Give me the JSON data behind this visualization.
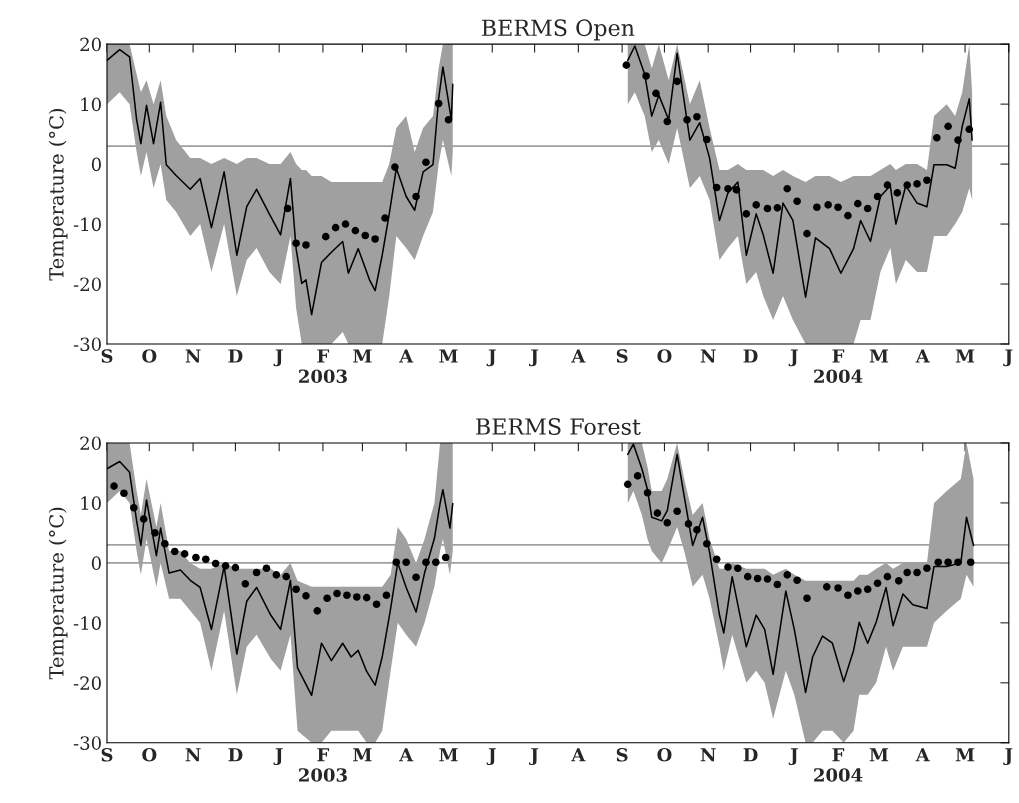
{
  "chart_data": [
    {
      "type": "line",
      "title": "BERMS Open",
      "ylabel": "Temperature (°C)",
      "xlim": [
        "2002-09-01",
        "2004-06-01"
      ],
      "xticks": [
        {
          "value": "2002-09-01",
          "label": "S"
        },
        {
          "value": "2002-10-01",
          "label": "O"
        },
        {
          "value": "2002-11-01",
          "label": "N"
        },
        {
          "value": "2002-12-01",
          "label": "D"
        },
        {
          "value": "2003-01-01",
          "label": "J"
        },
        {
          "value": "2003-02-01",
          "label": "F\n2003"
        },
        {
          "value": "2003-03-01",
          "label": "M"
        },
        {
          "value": "2003-04-01",
          "label": "A"
        },
        {
          "value": "2003-05-01",
          "label": "M"
        },
        {
          "value": "2003-06-01",
          "label": "J"
        },
        {
          "value": "2003-07-01",
          "label": "J"
        },
        {
          "value": "2003-08-01",
          "label": "A"
        },
        {
          "value": "2003-09-01",
          "label": "S"
        },
        {
          "value": "2003-10-01",
          "label": "O"
        },
        {
          "value": "2003-11-01",
          "label": "N"
        },
        {
          "value": "2003-12-01",
          "label": "D"
        },
        {
          "value": "2004-01-01",
          "label": "J"
        },
        {
          "value": "2004-02-01",
          "label": "F\n2004"
        },
        {
          "value": "2004-03-01",
          "label": "M"
        },
        {
          "value": "2004-04-01",
          "label": "A"
        },
        {
          "value": "2004-05-01",
          "label": "M"
        },
        {
          "value": "2004-06-01",
          "label": "J"
        }
      ],
      "ylim": [
        -30,
        20
      ],
      "yticks": [
        -30,
        -20,
        -10,
        0,
        10,
        20
      ],
      "grid": false,
      "ref_lines": [
        {
          "axis": "y",
          "value": 3,
          "color": "#a0a0a0"
        }
      ],
      "series": [
        {
          "color": "#000000",
          "x": [
            "2002-09-01",
            "2002-09-10",
            "2002-09-17",
            "2002-09-22",
            "2002-09-25",
            "2002-09-29",
            "2002-10-04",
            "2002-10-09",
            "2002-10-13",
            "2002-10-20",
            "2002-10-30",
            "2002-11-06",
            "2002-11-14",
            "2002-11-23",
            "2002-12-02",
            "2002-12-09",
            "2002-12-16",
            "2002-12-25",
            "2003-01-02",
            "2003-01-09",
            "2003-01-13",
            "2003-01-17",
            "2003-01-20",
            "2003-01-24",
            "2003-01-31",
            "2003-02-07",
            "2003-02-15",
            "2003-02-19",
            "2003-02-26",
            "2003-03-06",
            "2003-03-10",
            "2003-03-15",
            "2003-03-20",
            "2003-03-25",
            "2003-04-01",
            "2003-04-07",
            "2003-04-13",
            "2003-04-20",
            "2003-04-24",
            "2003-04-27",
            "2003-05-03",
            "2003-05-04"
          ],
          "values": [
            17.3,
            19.1,
            17.9,
            7.4,
            3.4,
            9.8,
            3.4,
            10.3,
            -0.1,
            -1.9,
            -4.2,
            -2.4,
            -10.6,
            -1.3,
            -15.2,
            -7.1,
            -4.2,
            -8.3,
            -11.8,
            -2.4,
            -14.1,
            -19.9,
            -19.3,
            -25.1,
            -16.4,
            -14.7,
            -12.9,
            -18.2,
            -14.1,
            -19.3,
            -21.1,
            -15.2,
            -8.3,
            -0.7,
            -5.4,
            -7.7,
            -1.3,
            -0.1,
            10.9,
            16.2,
            7.4,
            13.3
          ],
          "upper": [
            20,
            20,
            20,
            15,
            12,
            14,
            10,
            14,
            8,
            4,
            1,
            1,
            0,
            1,
            0,
            1,
            1,
            0,
            0,
            2,
            0,
            -1,
            -1,
            -2,
            -2,
            -3,
            -3,
            -3,
            -3,
            -3,
            -3,
            -3,
            0,
            6,
            8,
            2,
            6,
            8,
            16,
            20,
            20,
            20
          ],
          "lower": [
            10,
            12,
            10,
            2,
            -2,
            2,
            -4,
            0,
            -6,
            -8,
            -12,
            -10,
            -18,
            -10,
            -22,
            -16,
            -14,
            -18,
            -20,
            -12,
            -24,
            -30,
            -30,
            -30,
            -30,
            -30,
            -28,
            -30,
            -30,
            -30,
            -30,
            -30,
            -22,
            -12,
            -14,
            -16,
            -12,
            -8,
            0,
            4,
            -2,
            2
          ]
        },
        {
          "type": "scatter",
          "color": "#000000",
          "marker": "circle",
          "x": [
            "2003-01-07",
            "2003-01-13",
            "2003-01-20",
            "2003-02-03",
            "2003-02-10",
            "2003-02-17",
            "2003-02-24",
            "2003-03-03",
            "2003-03-10",
            "2003-03-17",
            "2003-03-24",
            "2003-04-08",
            "2003-04-15",
            "2003-04-24",
            "2003-05-01"
          ],
          "values": [
            -7.4,
            -13.2,
            -13.5,
            -12.1,
            -10.6,
            -10.0,
            -11.1,
            -11.9,
            -12.5,
            -9.0,
            -0.5,
            -5.4,
            0.3,
            10.1,
            7.4
          ]
        },
        {
          "color": "#000000",
          "x": [
            "2003-09-05",
            "2003-09-10",
            "2003-09-17",
            "2003-09-22",
            "2003-09-27",
            "2003-10-04",
            "2003-10-10",
            "2003-10-19",
            "2003-10-26",
            "2003-11-02",
            "2003-11-09",
            "2003-11-15",
            "2003-11-22",
            "2003-11-28",
            "2003-12-05",
            "2003-12-10",
            "2003-12-17",
            "2003-12-24",
            "2003-12-31",
            "2004-01-09",
            "2004-01-16",
            "2004-01-26",
            "2004-02-03",
            "2004-02-12",
            "2004-02-17",
            "2004-02-24",
            "2004-03-02",
            "2004-03-09",
            "2004-03-13",
            "2004-03-20",
            "2004-03-28",
            "2004-04-04",
            "2004-04-09",
            "2004-04-18",
            "2004-04-24",
            "2004-04-29",
            "2004-05-04",
            "2004-05-06"
          ],
          "values": [
            17.3,
            19.7,
            15,
            8,
            11.5,
            7.4,
            18.5,
            4,
            6.9,
            1.0,
            -9.4,
            -4.8,
            -3.0,
            -15.2,
            -8.3,
            -11.8,
            -18.2,
            -6.5,
            -9.4,
            -22.2,
            -12.3,
            -14.1,
            -18.2,
            -14.1,
            -9.4,
            -12.9,
            -5.4,
            -3.6,
            -10.0,
            -3.6,
            -6.5,
            -7.1,
            -0.1,
            -0.1,
            -0.7,
            6.3,
            10.9,
            4.0
          ],
          "upper": [
            20,
            20,
            20,
            16,
            20,
            14,
            20,
            10,
            14,
            6,
            -1,
            -1,
            0,
            -1,
            -1,
            -1,
            -2,
            -1,
            -2,
            -3,
            -2,
            -2,
            -3,
            -2,
            -2,
            -2,
            -1,
            0,
            -1,
            0,
            0,
            -1,
            8,
            10,
            8,
            12,
            20,
            12
          ],
          "lower": [
            10,
            12,
            8,
            2,
            4,
            0,
            6,
            -4,
            -2,
            -6,
            -16,
            -14,
            -12,
            -20,
            -18,
            -22,
            -26,
            -22,
            -26,
            -30,
            -30,
            -30,
            -30,
            -30,
            -26,
            -26,
            -18,
            -14,
            -20,
            -16,
            -18,
            -18,
            -12,
            -12,
            -10,
            -8,
            -4,
            -6
          ]
        },
        {
          "type": "scatter",
          "color": "#000000",
          "marker": "circle",
          "x": [
            "2003-09-04",
            "2003-09-18",
            "2003-09-25",
            "2003-10-03",
            "2003-10-10",
            "2003-10-17",
            "2003-10-24",
            "2003-10-31",
            "2003-11-07",
            "2003-11-15",
            "2003-11-21",
            "2003-11-28",
            "2003-12-05",
            "2003-12-13",
            "2003-12-20",
            "2003-12-27",
            "2004-01-03",
            "2004-01-10",
            "2004-01-17",
            "2004-01-25",
            "2004-02-01",
            "2004-02-08",
            "2004-02-15",
            "2004-02-22",
            "2004-02-29",
            "2004-03-07",
            "2004-03-14",
            "2004-03-21",
            "2004-03-28",
            "2004-04-04",
            "2004-04-11",
            "2004-04-19",
            "2004-04-26",
            "2004-05-04"
          ],
          "values": [
            16.5,
            14.7,
            11.8,
            7.1,
            13.8,
            7.4,
            7.9,
            4.1,
            -3.9,
            -4.1,
            -4.3,
            -8.3,
            -6.8,
            -7.4,
            -7.3,
            -4.1,
            -6.2,
            -11.6,
            -7.2,
            -6.8,
            -7.2,
            -8.6,
            -6.6,
            -7.4,
            -5.4,
            -3.5,
            -4.8,
            -3.5,
            -3.3,
            -2.7,
            4.4,
            6.3,
            4.0,
            5.8
          ]
        }
      ]
    },
    {
      "type": "line",
      "title": "BERMS Forest",
      "ylabel": "Temperature (°C)",
      "xlim": [
        "2002-09-01",
        "2004-06-01"
      ],
      "xticks": [
        {
          "value": "2002-09-01",
          "label": "S"
        },
        {
          "value": "2002-10-01",
          "label": "O"
        },
        {
          "value": "2002-11-01",
          "label": "N"
        },
        {
          "value": "2002-12-01",
          "label": "D"
        },
        {
          "value": "2003-01-01",
          "label": "J"
        },
        {
          "value": "2003-02-01",
          "label": "F\n2003"
        },
        {
          "value": "2003-03-01",
          "label": "M"
        },
        {
          "value": "2003-04-01",
          "label": "A"
        },
        {
          "value": "2003-05-01",
          "label": "M"
        },
        {
          "value": "2003-06-01",
          "label": "J"
        },
        {
          "value": "2003-07-01",
          "label": "J"
        },
        {
          "value": "2003-08-01",
          "label": "A"
        },
        {
          "value": "2003-09-01",
          "label": "S"
        },
        {
          "value": "2003-10-01",
          "label": "O"
        },
        {
          "value": "2003-11-01",
          "label": "N"
        },
        {
          "value": "2003-12-01",
          "label": "D"
        },
        {
          "value": "2004-01-01",
          "label": "J"
        },
        {
          "value": "2004-02-01",
          "label": "F\n2004"
        },
        {
          "value": "2004-03-01",
          "label": "M"
        },
        {
          "value": "2004-04-01",
          "label": "A"
        },
        {
          "value": "2004-05-01",
          "label": "M"
        },
        {
          "value": "2004-06-01",
          "label": "J"
        }
      ],
      "ylim": [
        -30,
        20
      ],
      "yticks": [
        -30,
        -20,
        -10,
        0,
        10,
        20
      ],
      "grid": false,
      "ref_lines": [
        {
          "axis": "y",
          "value": 3,
          "color": "#a0a0a0"
        },
        {
          "axis": "y",
          "value": 0,
          "color": "#a0a0a0"
        }
      ],
      "series": [
        {
          "color": "#000000",
          "x": [
            "2002-09-01",
            "2002-09-10",
            "2002-09-17",
            "2002-09-22",
            "2002-09-25",
            "2002-09-29",
            "2002-10-06",
            "2002-10-09",
            "2002-10-15",
            "2002-10-23",
            "2002-10-30",
            "2002-11-06",
            "2002-11-14",
            "2002-11-23",
            "2002-12-02",
            "2002-12-09",
            "2002-12-16",
            "2002-12-26",
            "2003-01-02",
            "2003-01-09",
            "2003-01-14",
            "2003-01-24",
            "2003-01-31",
            "2003-02-07",
            "2003-02-15",
            "2003-02-21",
            "2003-02-26",
            "2003-03-04",
            "2003-03-10",
            "2003-03-15",
            "2003-03-21",
            "2003-03-26",
            "2003-04-01",
            "2003-04-08",
            "2003-04-14",
            "2003-04-21",
            "2003-04-25",
            "2003-04-27",
            "2003-05-02",
            "2003-05-04"
          ],
          "values": [
            15.7,
            16.9,
            15.1,
            7.0,
            2.9,
            10.5,
            1.2,
            5.8,
            -1.7,
            -1.2,
            -2.9,
            -4.1,
            -11.1,
            -0.6,
            -15.2,
            -6.4,
            -4.1,
            -8.7,
            -11.1,
            -2.9,
            -17.5,
            -22.1,
            -13.4,
            -16.3,
            -13.4,
            -15.7,
            -14.6,
            -18.1,
            -20.4,
            -15.7,
            -7.6,
            0,
            -4.1,
            -8.2,
            -1.7,
            4.1,
            9.9,
            12.2,
            5.8,
            9.9
          ],
          "upper": [
            20,
            20,
            20,
            12,
            8,
            14,
            6,
            10,
            2,
            2,
            0,
            -1,
            -1,
            0,
            -1,
            -1,
            -1,
            -1,
            -2,
            0,
            -3,
            -4,
            -4,
            -4,
            -4,
            -4,
            -4,
            -4,
            -4,
            -4,
            -2,
            6,
            4,
            0,
            4,
            10,
            20,
            20,
            20,
            20
          ],
          "lower": [
            10,
            12,
            10,
            2,
            -2,
            4,
            -4,
            0,
            -6,
            -6,
            -8,
            -10,
            -18,
            -8,
            -22,
            -14,
            -12,
            -16,
            -18,
            -12,
            -28,
            -30,
            -30,
            -28,
            -28,
            -28,
            -28,
            -30,
            -30,
            -28,
            -18,
            -10,
            -12,
            -14,
            -10,
            -4,
            2,
            4,
            -2,
            2
          ]
        },
        {
          "type": "scatter",
          "color": "#000000",
          "marker": "circle",
          "x": [
            "2002-09-06",
            "2002-09-13",
            "2002-09-20",
            "2002-09-27",
            "2002-10-05",
            "2002-10-12",
            "2002-10-19",
            "2002-10-26",
            "2002-11-03",
            "2002-11-10",
            "2002-11-17",
            "2002-11-24",
            "2002-12-01",
            "2002-12-08",
            "2002-12-16",
            "2002-12-23",
            "2002-12-30",
            "2003-01-06",
            "2003-01-13",
            "2003-01-20",
            "2003-01-28",
            "2003-02-04",
            "2003-02-11",
            "2003-02-18",
            "2003-02-25",
            "2003-03-04",
            "2003-03-11",
            "2003-03-18",
            "2003-03-25",
            "2003-04-01",
            "2003-04-08",
            "2003-04-15",
            "2003-04-22",
            "2003-04-29"
          ],
          "values": [
            12.8,
            11.6,
            9.2,
            7.3,
            5.0,
            3.2,
            1.9,
            1.5,
            0.9,
            0.6,
            -0.1,
            -0.5,
            -0.8,
            -3.5,
            -1.6,
            -0.9,
            -2.0,
            -2.3,
            -4.4,
            -5.5,
            -8.0,
            -5.9,
            -5.1,
            -5.4,
            -5.7,
            -5.8,
            -6.9,
            -5.4,
            0.1,
            0.1,
            -2.4,
            0.1,
            0.1,
            0.9
          ]
        },
        {
          "color": "#000000",
          "x": [
            "2003-09-05",
            "2003-09-09",
            "2003-09-15",
            "2003-09-19",
            "2003-09-22",
            "2003-09-29",
            "2003-10-03",
            "2003-10-10",
            "2003-10-15",
            "2003-10-21",
            "2003-10-28",
            "2003-11-02",
            "2003-11-09",
            "2003-11-12",
            "2003-11-18",
            "2003-11-28",
            "2003-12-05",
            "2003-12-11",
            "2003-12-17",
            "2003-12-26",
            "2004-01-01",
            "2004-01-09",
            "2004-01-14",
            "2004-01-21",
            "2004-01-28",
            "2004-02-05",
            "2004-02-12",
            "2004-02-16",
            "2004-02-22",
            "2004-02-28",
            "2004-03-06",
            "2004-03-11",
            "2004-03-18",
            "2004-03-25",
            "2004-04-04",
            "2004-04-09",
            "2004-04-18",
            "2004-04-28",
            "2004-05-02",
            "2004-05-07"
          ],
          "values": [
            18.1,
            19.8,
            15.7,
            12.2,
            7.6,
            7.0,
            8.7,
            18.1,
            11.1,
            2.9,
            7.6,
            1.7,
            -8.7,
            -11.7,
            -2.3,
            -14.0,
            -8.7,
            -11.1,
            -18.6,
            -4.7,
            -11.1,
            -21.6,
            -15.7,
            -12.2,
            -13.4,
            -19.8,
            -14.6,
            -9.9,
            -13.4,
            -9.9,
            -4.1,
            -10.5,
            -5.2,
            -7.0,
            -7.6,
            -0.6,
            -0.6,
            0,
            7.6,
            2.9
          ],
          "upper": [
            20,
            20,
            20,
            16,
            12,
            12,
            14,
            20,
            14,
            8,
            10,
            4,
            -1,
            -1,
            0,
            -1,
            -1,
            -1,
            -2,
            -1,
            -2,
            -3,
            -3,
            -3,
            -3,
            -3,
            -3,
            -2,
            -2,
            -1,
            0,
            -1,
            0,
            0,
            0,
            10,
            12,
            14,
            20,
            14
          ],
          "lower": [
            10,
            12,
            8,
            4,
            2,
            0,
            2,
            6,
            2,
            -4,
            -2,
            -6,
            -14,
            -18,
            -12,
            -20,
            -18,
            -20,
            -26,
            -18,
            -22,
            -30,
            -30,
            -28,
            -28,
            -30,
            -28,
            -22,
            -22,
            -20,
            -14,
            -18,
            -14,
            -14,
            -14,
            -10,
            -8,
            -6,
            -2,
            -4
          ]
        },
        {
          "type": "scatter",
          "color": "#000000",
          "marker": "circle",
          "x": [
            "2003-09-05",
            "2003-09-12",
            "2003-09-19",
            "2003-09-26",
            "2003-10-03",
            "2003-10-10",
            "2003-10-18",
            "2003-10-24",
            "2003-10-31",
            "2003-11-07",
            "2003-11-15",
            "2003-11-22",
            "2003-11-29",
            "2003-12-06",
            "2003-12-13",
            "2003-12-20",
            "2003-12-27",
            "2004-01-03",
            "2004-01-10",
            "2004-01-24",
            "2004-02-01",
            "2004-02-08",
            "2004-02-15",
            "2004-02-22",
            "2004-02-29",
            "2004-03-07",
            "2004-03-15",
            "2004-03-21",
            "2004-03-28",
            "2004-04-04",
            "2004-04-12",
            "2004-04-19",
            "2004-04-26",
            "2004-05-05"
          ],
          "values": [
            13.1,
            14.5,
            11.7,
            8.3,
            6.7,
            8.6,
            6.5,
            5.5,
            3.2,
            0.6,
            -0.7,
            -0.9,
            -2.3,
            -2.6,
            -2.7,
            -3.6,
            -2.0,
            -2.9,
            -5.9,
            -4.0,
            -4.2,
            -5.4,
            -4.7,
            -4.4,
            -3.4,
            -2.3,
            -3.0,
            -1.6,
            -1.6,
            -0.9,
            0.1,
            0.1,
            0.1,
            0.1
          ]
        }
      ]
    }
  ]
}
